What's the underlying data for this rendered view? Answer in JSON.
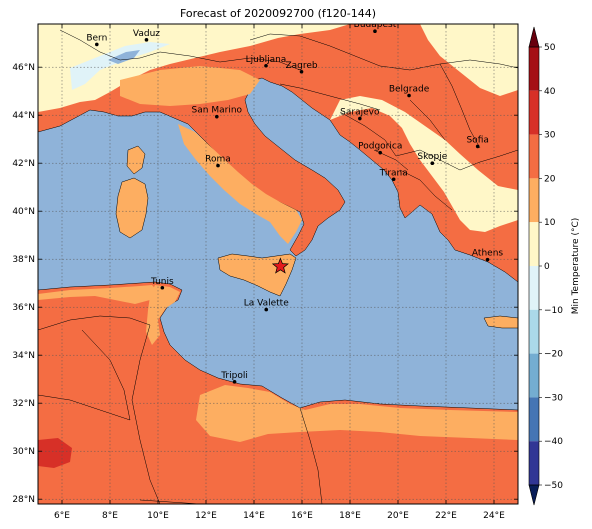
{
  "title": "Forecast of 2020092700 (f120-144)",
  "colorbar": {
    "label": "Min Temperature (°C)",
    "min": -50,
    "max": 50,
    "ticks": [
      50,
      40,
      30,
      20,
      10,
      0,
      -10,
      -20,
      -30,
      -40,
      -50
    ],
    "levels": [
      {
        "from": 40,
        "to": 50,
        "color": "#a50f15"
      },
      {
        "from": 30,
        "to": 40,
        "color": "#d73027"
      },
      {
        "from": 20,
        "to": 30,
        "color": "#f46d43"
      },
      {
        "from": 10,
        "to": 20,
        "color": "#fdae61"
      },
      {
        "from": 0,
        "to": 10,
        "color": "#fff7c8"
      },
      {
        "from": -10,
        "to": 0,
        "color": "#e0f3f8"
      },
      {
        "from": -20,
        "to": -10,
        "color": "#abd9e9"
      },
      {
        "from": -30,
        "to": -20,
        "color": "#74add1"
      },
      {
        "from": -40,
        "to": -30,
        "color": "#4575b4"
      },
      {
        "from": -50,
        "to": -40,
        "color": "#313695"
      }
    ],
    "over_color": "#67000d",
    "under_color": "#081d58"
  },
  "map": {
    "lon_range": [
      5,
      25
    ],
    "lat_range": [
      27.8,
      47.8
    ],
    "lon_ticks": [
      "6°E",
      "8°E",
      "10°E",
      "12°E",
      "14°E",
      "16°E",
      "18°E",
      "20°E",
      "22°E",
      "24°E"
    ],
    "lat_ticks": [
      "46°N",
      "44°N",
      "42°N",
      "40°N",
      "38°N",
      "36°N",
      "34°N",
      "32°N",
      "30°N",
      "28°N"
    ],
    "grid": true,
    "sea_color": "#8fb3d9",
    "marker": {
      "name": "star",
      "lon": 15.1,
      "lat": 37.7,
      "color": "#e41a1c"
    }
  },
  "cities": [
    {
      "name": "Bern",
      "lon": 7.45,
      "lat": 46.95
    },
    {
      "name": "Vaduz",
      "lon": 9.52,
      "lat": 47.14
    },
    {
      "name": "Budapest",
      "lon": 19.04,
      "lat": 47.5
    },
    {
      "name": "Ljubljana",
      "lon": 14.5,
      "lat": 46.06
    },
    {
      "name": "Zagreb",
      "lon": 15.98,
      "lat": 45.81
    },
    {
      "name": "Belgrade",
      "lon": 20.46,
      "lat": 44.82
    },
    {
      "name": "San Marino",
      "lon": 12.45,
      "lat": 43.94
    },
    {
      "name": "Sarajevo",
      "lon": 18.41,
      "lat": 43.86
    },
    {
      "name": "Sofia",
      "lon": 23.32,
      "lat": 42.7
    },
    {
      "name": "Podgorica",
      "lon": 19.26,
      "lat": 42.44
    },
    {
      "name": "Skopje",
      "lon": 21.43,
      "lat": 42.0
    },
    {
      "name": "Roma",
      "lon": 12.5,
      "lat": 41.9
    },
    {
      "name": "Tirana",
      "lon": 19.82,
      "lat": 41.33
    },
    {
      "name": "Athens",
      "lon": 23.73,
      "lat": 37.98
    },
    {
      "name": "Tunis",
      "lon": 10.18,
      "lat": 36.81
    },
    {
      "name": "La Valette",
      "lon": 14.51,
      "lat": 35.9
    },
    {
      "name": "Tripoli",
      "lon": 13.19,
      "lat": 32.89
    }
  ]
}
